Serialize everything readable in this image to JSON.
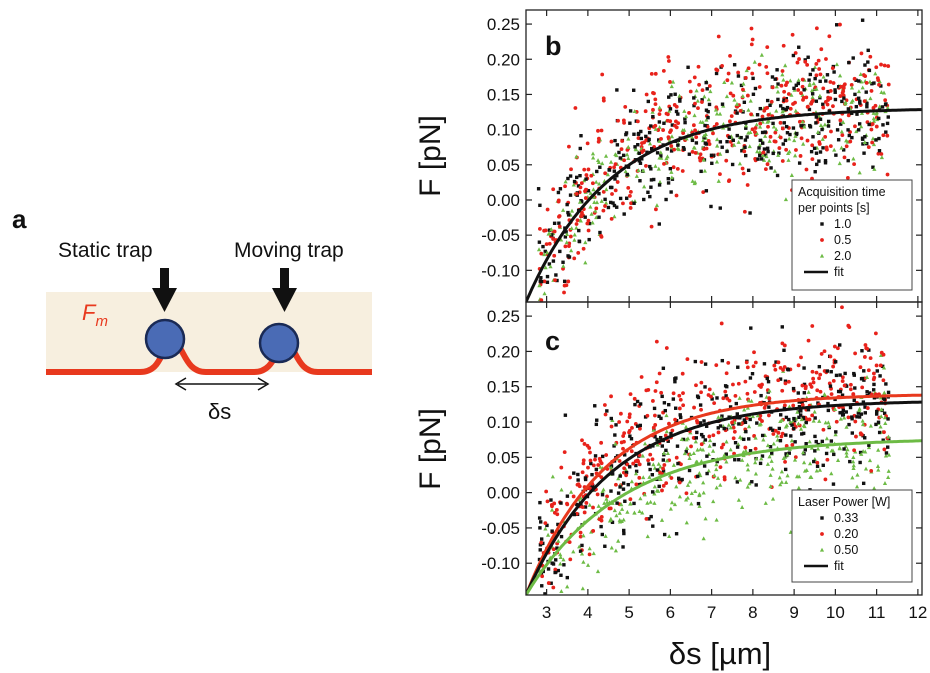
{
  "panel_a": {
    "label": "a",
    "static_trap_label": "Static trap",
    "moving_trap_label": "Moving trap",
    "membrane_force_label": "F",
    "membrane_force_subscript": "m",
    "separation_label": "δs",
    "colors": {
      "background": "#f7efdf",
      "membrane": "#e8391e",
      "bead": "#4a6bb5",
      "bead_outline": "#1a2a55"
    }
  },
  "shared_xlabel": "δs [µm]",
  "chart_data": [
    {
      "panel": "b",
      "type": "scatter",
      "ylabel": "F [pN]",
      "xlim": [
        2.5,
        12.1
      ],
      "ylim": [
        -0.145,
        0.27
      ],
      "x_ticks": [
        3,
        4,
        5,
        6,
        7,
        8,
        9,
        10,
        11,
        12
      ],
      "x_tick_labels": [
        "3",
        "4",
        "5",
        "6",
        "7",
        "8",
        "9",
        "10",
        "11",
        "12"
      ],
      "y_ticks": [
        -0.1,
        -0.05,
        0,
        0.05,
        0.1,
        0.15,
        0.2,
        0.25
      ],
      "y_tick_labels": [
        "-0.10",
        "-0.05",
        "0.00",
        "0.05",
        "0.10",
        "0.15",
        "0.20",
        "0.25"
      ],
      "legend_title_lines": [
        "Acquisition time",
        "per points [s]"
      ],
      "legend_position": "lower-right",
      "series": [
        {
          "name": "1.0",
          "marker": "square",
          "color": "#111111",
          "count": 380,
          "x_range": [
            2.8,
            11.3
          ],
          "asymptote": 0.131,
          "rate": 0.49,
          "noise": 0.045
        },
        {
          "name": "0.5",
          "marker": "circle",
          "color": "#e8221b",
          "count": 460,
          "x_range": [
            2.8,
            11.3
          ],
          "asymptote": 0.14,
          "rate": 0.5,
          "noise": 0.048
        },
        {
          "name": "2.0",
          "marker": "triangle",
          "color": "#6dbb45",
          "count": 330,
          "x_range": [
            2.8,
            11.3
          ],
          "asymptote": 0.128,
          "rate": 0.48,
          "noise": 0.04
        }
      ],
      "fits": [
        {
          "name": "fit",
          "color": "#111111",
          "asymptote": 0.131,
          "rate": 0.49,
          "x0": 2.5,
          "y0": -0.145
        }
      ]
    },
    {
      "panel": "c",
      "type": "scatter",
      "ylabel": "F [pN]",
      "xlim": [
        2.5,
        12.1
      ],
      "ylim": [
        -0.145,
        0.27
      ],
      "x_ticks": [
        3,
        4,
        5,
        6,
        7,
        8,
        9,
        10,
        11,
        12
      ],
      "x_tick_labels": [
        "3",
        "4",
        "5",
        "6",
        "7",
        "8",
        "9",
        "10",
        "11",
        "12"
      ],
      "y_ticks": [
        -0.1,
        -0.05,
        0,
        0.05,
        0.1,
        0.15,
        0.2,
        0.25
      ],
      "y_tick_labels": [
        "-0.10",
        "-0.05",
        "0.00",
        "0.05",
        "0.10",
        "0.15",
        "0.20",
        "0.25"
      ],
      "legend_title_lines": [
        "Laser Power [W]"
      ],
      "legend_position": "lower-right",
      "series": [
        {
          "name": "0.33",
          "marker": "square",
          "color": "#111111",
          "count": 400,
          "x_range": [
            2.8,
            11.3
          ],
          "asymptote": 0.131,
          "rate": 0.48,
          "noise": 0.045,
          "fit_color": "#111111"
        },
        {
          "name": "0.20",
          "marker": "circle",
          "color": "#e8221b",
          "count": 420,
          "x_range": [
            2.8,
            11.3
          ],
          "asymptote": 0.14,
          "rate": 0.52,
          "noise": 0.045,
          "fit_color": "#e8391e"
        },
        {
          "name": "0.50",
          "marker": "triangle",
          "color": "#6dbb45",
          "count": 380,
          "x_range": [
            2.8,
            11.3
          ],
          "asymptote": 0.077,
          "rate": 0.43,
          "noise": 0.045,
          "fit_color": "#6dbb45"
        }
      ],
      "fits": [
        {
          "name": "fit",
          "color": "#e8391e",
          "asymptote": 0.14,
          "rate": 0.52,
          "x0": 2.5,
          "y0": -0.145
        },
        {
          "name": "fit",
          "color": "#111111",
          "asymptote": 0.131,
          "rate": 0.48,
          "x0": 2.5,
          "y0": -0.145
        },
        {
          "name": "fit",
          "color": "#6dbb45",
          "asymptote": 0.077,
          "rate": 0.43,
          "x0": 2.5,
          "y0": -0.145
        }
      ]
    }
  ]
}
